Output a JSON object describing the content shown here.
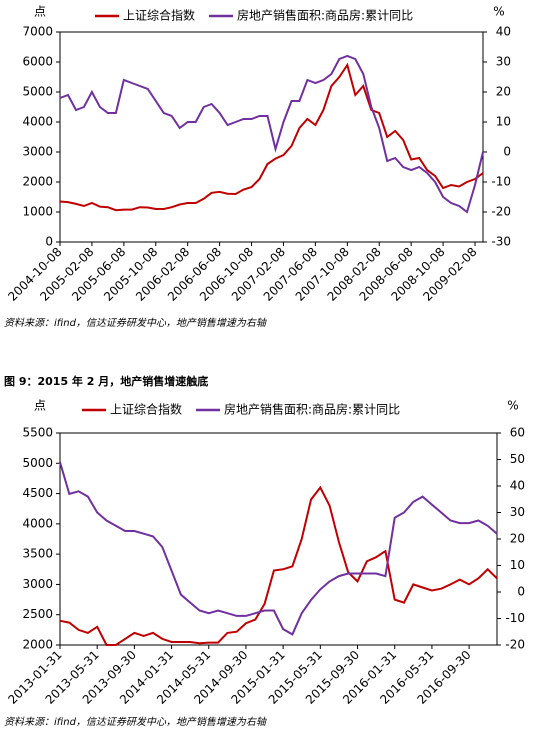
{
  "chart_data": [
    {
      "type": "line",
      "y_label": "点",
      "y2_label": "%",
      "source": "资料来源：ifind，信达证券研发中心，地产销售增速为右轴",
      "categories": [
        "2004-10-08",
        null,
        null,
        null,
        "2005-02-08",
        null,
        null,
        null,
        "2005-06-08",
        null,
        null,
        null,
        "2005-10-08",
        null,
        null,
        null,
        "2006-02-08",
        null,
        null,
        null,
        "2006-06-08",
        null,
        null,
        null,
        "2006-10-08",
        null,
        null,
        null,
        "2007-02-08",
        null,
        null,
        null,
        "2007-06-08",
        null,
        null,
        null,
        "2007-10-08",
        null,
        null,
        null,
        "2008-02-08",
        null,
        null,
        null,
        "2008-06-08",
        null,
        null,
        null,
        "2008-10-08",
        null,
        null,
        null,
        "2009-02-08",
        null
      ],
      "series": [
        {
          "name": "上证综合指数",
          "color": "#c00000",
          "values": [
            1350,
            1330,
            1270,
            1200,
            1300,
            1180,
            1160,
            1060,
            1080,
            1080,
            1160,
            1150,
            1100,
            1100,
            1160,
            1250,
            1300,
            1300,
            1440,
            1640,
            1670,
            1610,
            1600,
            1750,
            1830,
            2100,
            2600,
            2780,
            2900,
            3200,
            3800,
            4100,
            3900,
            4400,
            5200,
            5500,
            5900,
            4900,
            5200,
            4400,
            4300,
            3500,
            3700,
            3400,
            2750,
            2800,
            2400,
            2200,
            1800,
            1900,
            1850,
            2000,
            2100,
            2300
          ]
        },
        {
          "name": "房地产销售面积:商品房:累计同比",
          "color": "#7030a0",
          "axis": "y2",
          "values": [
            18,
            19,
            14,
            15,
            20,
            15,
            13,
            13,
            24,
            23,
            22,
            21,
            17,
            13,
            12,
            8,
            10,
            10,
            15,
            16,
            13,
            9,
            10,
            11,
            11,
            12,
            12,
            1,
            10,
            17,
            17,
            24,
            23,
            24,
            26,
            31,
            32,
            31,
            26,
            15,
            8,
            -3,
            -2,
            -5,
            -6,
            -5,
            -7,
            -10,
            -15,
            -17,
            -18,
            -20,
            -11,
            0
          ]
        }
      ],
      "ylim": [
        0,
        7000
      ],
      "yticks": [
        0,
        1000,
        2000,
        3000,
        4000,
        5000,
        6000,
        7000
      ],
      "y2lim": [
        -30,
        40
      ],
      "y2ticks": [
        -30,
        -20,
        -10,
        0,
        10,
        20,
        30,
        40
      ]
    },
    {
      "type": "line",
      "title": "图 9：2015 年 2 月，地产销售增速触底",
      "y_label": "点",
      "y2_label": "%",
      "source": "资料来源：ifind，信达证券研发中心，地产销售增速为右轴",
      "categories": [
        "2013-01-31",
        null,
        null,
        null,
        "2013-05-31",
        null,
        null,
        null,
        "2013-09-30",
        null,
        null,
        null,
        "2014-01-31",
        null,
        null,
        null,
        "2014-05-31",
        null,
        null,
        null,
        "2014-09-30",
        null,
        null,
        null,
        "2015-01-31",
        null,
        null,
        null,
        "2015-05-31",
        null,
        null,
        null,
        "2015-09-30",
        null,
        null,
        null,
        "2016-01-31",
        null,
        null,
        null,
        "2016-05-31",
        null,
        null,
        null,
        "2016-09-30",
        null,
        null,
        null
      ],
      "series": [
        {
          "name": "上证综合指数",
          "color": "#c00000",
          "values": [
            2400,
            2370,
            2250,
            2200,
            2300,
            2000,
            2000,
            2100,
            2200,
            2150,
            2200,
            2100,
            2050,
            2050,
            2050,
            2030,
            2040,
            2040,
            2200,
            2220,
            2360,
            2420,
            2680,
            3230,
            3250,
            3300,
            3750,
            4400,
            4600,
            4300,
            3700,
            3200,
            3050,
            3380,
            3450,
            3550,
            2750,
            2700,
            3000,
            2950,
            2900,
            2930,
            3000,
            3080,
            3000,
            3100,
            3250,
            3100
          ]
        },
        {
          "name": "房地产销售面积:商品房:累计同比",
          "color": "#7030a0",
          "axis": "y2",
          "values": [
            49,
            37,
            38,
            36,
            30,
            27,
            25,
            23,
            23,
            22,
            21,
            17,
            8,
            -1,
            -4,
            -7,
            -8,
            -7,
            -8,
            -9,
            -9,
            -8,
            -7,
            -7,
            -14,
            -16,
            -8,
            -3,
            1,
            4,
            6,
            7,
            7,
            7,
            7,
            6,
            28,
            30,
            34,
            36,
            33,
            30,
            27,
            26,
            26,
            27,
            25,
            22
          ]
        }
      ],
      "ylim": [
        2000,
        5500
      ],
      "yticks": [
        2000,
        2500,
        3000,
        3500,
        4000,
        4500,
        5000,
        5500
      ],
      "y2lim": [
        -20,
        60
      ],
      "y2ticks": [
        -20,
        -10,
        0,
        10,
        20,
        30,
        40,
        50,
        60
      ]
    }
  ]
}
